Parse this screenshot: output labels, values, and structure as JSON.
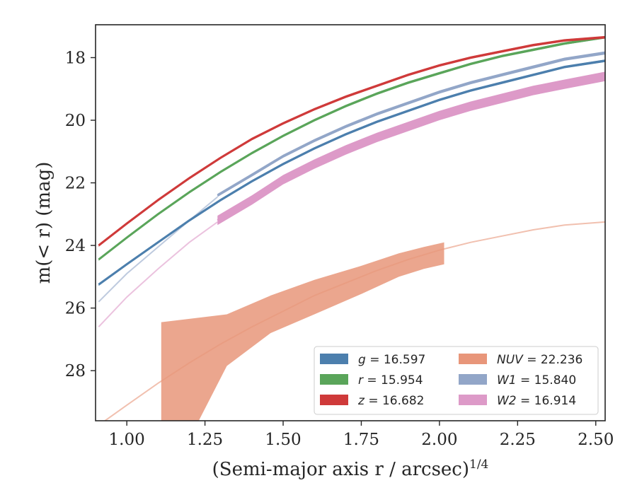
{
  "chart_data": {
    "type": "line",
    "xlabel": "(Semi-major axis r / arcsec)",
    "xlabel_superscript": "1/4",
    "ylabel": "m(< r) (mag)",
    "xlim": [
      0.9,
      2.53
    ],
    "ylim": [
      29.6,
      16.95
    ],
    "y_inverted": true,
    "grid": false,
    "legend_placement": "lower right",
    "legend_columns": 2,
    "xticks": [
      "1.00",
      "1.25",
      "1.50",
      "1.75",
      "2.00",
      "2.25",
      "2.50"
    ],
    "xtick_values": [
      1.0,
      1.25,
      1.5,
      1.75,
      2.0,
      2.25,
      2.5
    ],
    "yticks": [
      "18",
      "20",
      "22",
      "24",
      "26",
      "28"
    ],
    "ytick_values": [
      18,
      20,
      22,
      24,
      26,
      28
    ],
    "series": [
      {
        "name": "g = 16.597",
        "color": "#4c7fad",
        "x": [
          0.91,
          1.0,
          1.1,
          1.2,
          1.3,
          1.4,
          1.5,
          1.6,
          1.7,
          1.8,
          1.9,
          2.0,
          2.1,
          2.2,
          2.3,
          2.4,
          2.53
        ],
        "y": [
          25.25,
          24.6,
          23.9,
          23.2,
          22.55,
          21.95,
          21.4,
          20.9,
          20.45,
          20.05,
          19.7,
          19.35,
          19.05,
          18.8,
          18.55,
          18.3,
          18.1
        ],
        "band": 0.08
      },
      {
        "name": "r = 15.954",
        "color": "#5aa55a",
        "x": [
          0.91,
          1.0,
          1.1,
          1.2,
          1.3,
          1.4,
          1.5,
          1.6,
          1.7,
          1.8,
          1.9,
          2.0,
          2.1,
          2.2,
          2.3,
          2.4,
          2.53
        ],
        "y": [
          24.45,
          23.75,
          23.0,
          22.3,
          21.65,
          21.05,
          20.5,
          20.0,
          19.55,
          19.15,
          18.8,
          18.5,
          18.2,
          17.95,
          17.75,
          17.55,
          17.35
        ],
        "band": 0.08
      },
      {
        "name": "z = 16.682",
        "color": "#cf3a3a",
        "x": [
          0.91,
          1.0,
          1.1,
          1.2,
          1.3,
          1.4,
          1.5,
          1.6,
          1.7,
          1.8,
          1.9,
          2.0,
          2.1,
          2.2,
          2.3,
          2.4,
          2.53
        ],
        "y": [
          24.0,
          23.3,
          22.55,
          21.85,
          21.2,
          20.6,
          20.1,
          19.65,
          19.25,
          18.9,
          18.55,
          18.25,
          18.0,
          17.8,
          17.6,
          17.45,
          17.35
        ],
        "band": 0.08
      },
      {
        "name": "W1 = 15.840",
        "color": "#92a6c8",
        "x": [
          1.29,
          1.4,
          1.5,
          1.6,
          1.7,
          1.8,
          1.9,
          2.0,
          2.1,
          2.2,
          2.3,
          2.4,
          2.53
        ],
        "y": [
          22.4,
          21.75,
          21.15,
          20.65,
          20.2,
          19.8,
          19.45,
          19.1,
          18.8,
          18.55,
          18.3,
          18.05,
          17.85
        ],
        "band": 0.1,
        "extrapolation": {
          "x": [
            0.91,
            1.0,
            1.1,
            1.2,
            1.29
          ],
          "y": [
            25.8,
            24.9,
            24.05,
            23.2,
            22.45
          ]
        }
      },
      {
        "name": "W2 = 16.914",
        "color": "#dd9ac8",
        "x": [
          1.29,
          1.4,
          1.5,
          1.6,
          1.7,
          1.8,
          1.9,
          2.0,
          2.1,
          2.2,
          2.3,
          2.4,
          2.53
        ],
        "y": [
          23.2,
          22.55,
          21.9,
          21.4,
          20.95,
          20.55,
          20.2,
          19.85,
          19.55,
          19.3,
          19.05,
          18.85,
          18.6
        ],
        "band": 0.3,
        "extrapolation": {
          "x": [
            0.91,
            1.0,
            1.1,
            1.2,
            1.29
          ],
          "y": [
            26.6,
            25.65,
            24.75,
            23.9,
            23.25
          ]
        }
      },
      {
        "name": "NUV = 22.236",
        "color": "#e8967a",
        "band_upper": {
          "x": [
            1.11,
            1.32,
            1.46,
            1.6,
            1.75,
            1.87,
            1.95,
            2.015
          ],
          "y": [
            26.45,
            26.2,
            25.6,
            25.1,
            24.65,
            24.25,
            24.05,
            23.9
          ]
        },
        "band_lower": {
          "x": [
            1.11,
            1.23,
            1.32,
            1.46,
            1.6,
            1.75,
            1.87,
            1.95,
            2.015
          ],
          "y": [
            29.6,
            29.6,
            27.85,
            26.8,
            26.2,
            25.55,
            25.0,
            24.75,
            24.6
          ]
        },
        "extrapolation": {
          "x": [
            0.93,
            1.0,
            1.1,
            1.2,
            1.3,
            1.4,
            1.5,
            1.6,
            1.7,
            1.8,
            1.9,
            2.0,
            2.1,
            2.2,
            2.3,
            2.4,
            2.53
          ],
          "y": [
            29.6,
            29.1,
            28.4,
            27.75,
            27.15,
            26.6,
            26.1,
            25.6,
            25.2,
            24.8,
            24.45,
            24.15,
            23.9,
            23.7,
            23.5,
            23.35,
            23.25
          ]
        }
      }
    ],
    "legend": [
      {
        "name_italic": "g",
        "text": " = 16.597",
        "color": "#4c7fad"
      },
      {
        "name_italic": "r",
        "text": " = 15.954",
        "color": "#5aa55a"
      },
      {
        "name_italic": "z",
        "text": " = 16.682",
        "color": "#cf3a3a"
      },
      {
        "name_italic": "NUV",
        "text": " = 22.236",
        "color": "#e8967a"
      },
      {
        "name_italic": "W1",
        "text": " = 15.840",
        "color": "#92a6c8"
      },
      {
        "name_italic": "W2",
        "text": " = 16.914",
        "color": "#dd9ac8"
      }
    ]
  }
}
